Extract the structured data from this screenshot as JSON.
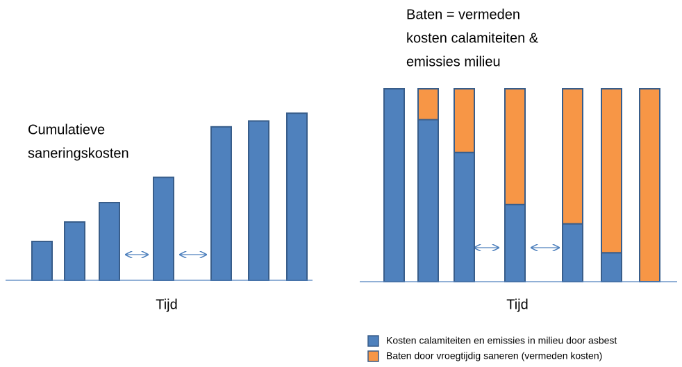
{
  "chart_data": [
    {
      "type": "bar",
      "title": [
        "Cumulatieve",
        "saneringskosten"
      ],
      "x_label": "Tijd",
      "categories": [
        null,
        null,
        null,
        null,
        null,
        null,
        null
      ],
      "values": [
        20,
        30,
        40,
        53,
        79,
        82,
        86
      ],
      "color": "#4f81bd",
      "ylim": [
        0,
        100
      ]
    },
    {
      "type": "stacked_bar",
      "title": [
        "Baten = vermeden",
        "kosten calamiteiten &",
        "emissies milieu"
      ],
      "x_label": "Tijd",
      "categories": [
        null,
        null,
        null,
        null,
        null,
        null,
        null
      ],
      "series": [
        {
          "name": "Kosten calamiteiten en emissies in milieu door asbest",
          "color": "#4f81bd",
          "values": [
            100,
            84,
            67,
            40,
            30,
            15,
            0
          ]
        },
        {
          "name": "Baten door vroegtijdig saneren (vermeden kosten)",
          "color": "#f79646",
          "values": [
            0,
            16,
            33,
            60,
            70,
            85,
            100
          ]
        }
      ],
      "legend": "bottom right",
      "ylim": [
        0,
        100
      ]
    }
  ]
}
